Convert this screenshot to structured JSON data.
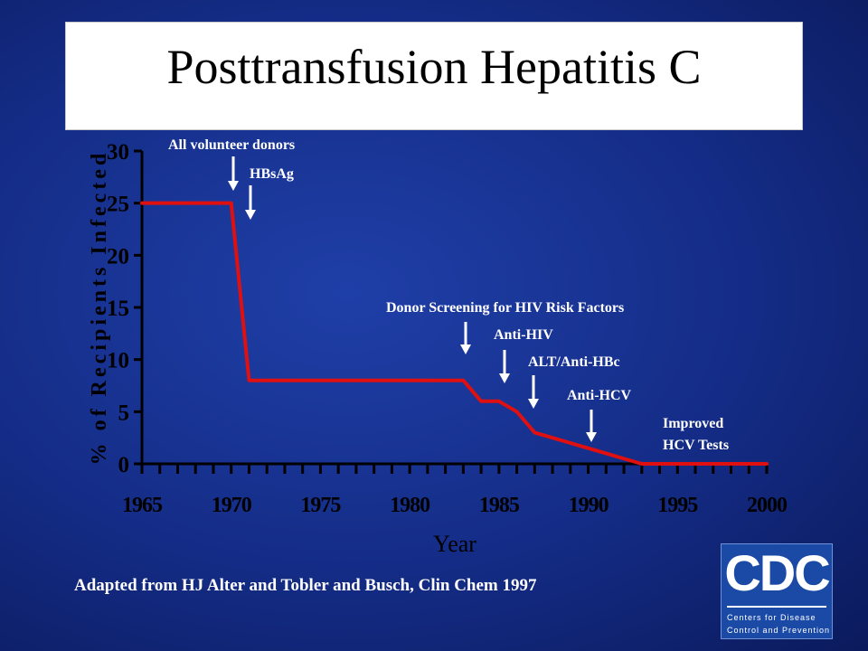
{
  "title": "Posttransfusion Hepatitis C",
  "source": "Adapted from HJ Alter and Tobler and Busch, Clin Chem 1997",
  "logo": {
    "letters": "CDC",
    "line1": "Centers for Disease",
    "line2": "Control and Prevention"
  },
  "chart_data": {
    "type": "line",
    "title": "Posttransfusion Hepatitis C",
    "xlabel": "Year",
    "ylabel": "% of Recipients Infected",
    "xlim": [
      1965,
      2000
    ],
    "ylim": [
      0,
      30
    ],
    "x_ticks": [
      "1965",
      "1970",
      "1975",
      "1980",
      "1985",
      "1990",
      "1995",
      "2000"
    ],
    "y_ticks": [
      "0",
      "5",
      "10",
      "15",
      "20",
      "25",
      "30"
    ],
    "grid": false,
    "series": [
      {
        "color": "#e01010",
        "points": [
          {
            "x": 1965,
            "y": 25
          },
          {
            "x": 1970,
            "y": 25
          },
          {
            "x": 1971,
            "y": 8
          },
          {
            "x": 1983,
            "y": 8
          },
          {
            "x": 1984,
            "y": 6
          },
          {
            "x": 1985,
            "y": 6
          },
          {
            "x": 1986,
            "y": 5
          },
          {
            "x": 1987,
            "y": 3
          },
          {
            "x": 1990,
            "y": 1.5
          },
          {
            "x": 1991,
            "y": 1
          },
          {
            "x": 1992,
            "y": 0.5
          },
          {
            "x": 1993,
            "y": 0
          },
          {
            "x": 2000,
            "y": 0
          }
        ]
      }
    ],
    "annotations": [
      {
        "text": "All volunteer donors",
        "year": 1970
      },
      {
        "text": "HBsAg",
        "year": 1971
      },
      {
        "text": "Donor Screening for HIV Risk Factors",
        "year": 1983
      },
      {
        "text": "Anti-HIV",
        "year": 1985.5
      },
      {
        "text": "ALT/Anti-HBc",
        "year": 1986.5
      },
      {
        "text": "Anti-HCV",
        "year": 1990
      },
      {
        "text": "Improved HCV Tests",
        "year": null
      }
    ]
  }
}
